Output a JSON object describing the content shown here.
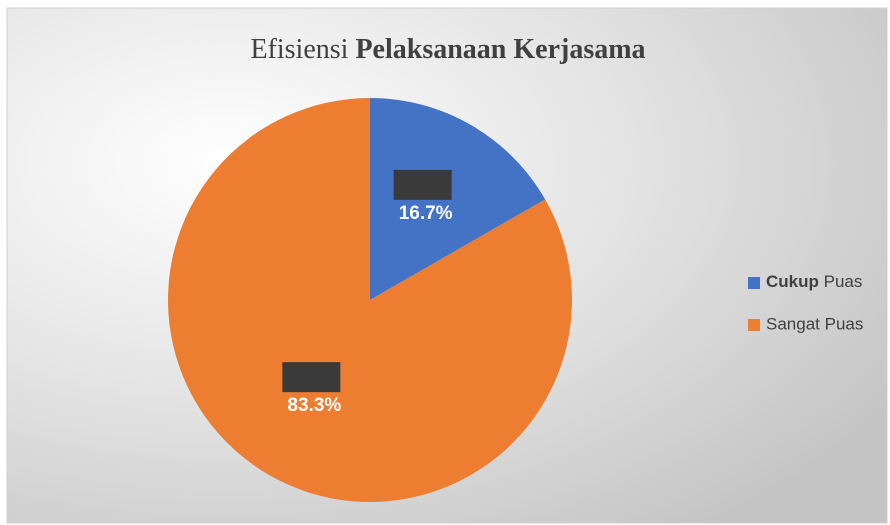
{
  "chart_data": {
    "type": "pie",
    "title": "Efisiensi Pelaksanaan Kerjasama",
    "categories": [
      "Cukup Puas",
      "Sangat Puas"
    ],
    "values": [
      16.7,
      83.3
    ],
    "value_labels": [
      "16.7%",
      "83.3%"
    ],
    "colors": [
      "#4472c4",
      "#ed7d31"
    ],
    "legend": "right"
  }
}
